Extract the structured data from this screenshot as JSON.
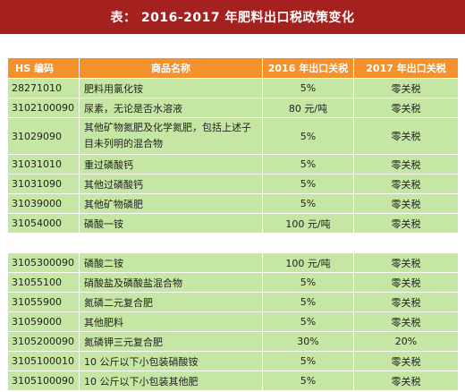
{
  "title": "表：  2016-2017 年肥料出口税政策变化",
  "headers": [
    "HS 编码",
    "商品名称",
    "2016 年出口关税",
    "2017 年出口关税"
  ],
  "table1_rows": [
    [
      "28271010",
      "肥料用氯化铵",
      "5%",
      "零关税"
    ],
    [
      "3102100090",
      "尿素，无论是否水溶液",
      "80 元/吨",
      "零关税"
    ],
    [
      "31029090",
      "其他矿物氮肥及化学氮肥，包括上述子目未列明的混合物",
      "5%",
      "零关税"
    ],
    [
      "31031010",
      "重过磷酸钙",
      "5%",
      "零关税"
    ],
    [
      "31031090",
      "其他过磷酸钙",
      "5%",
      "零关税"
    ],
    [
      "31039000",
      "其他矿物磷肥",
      "5%",
      "零关税"
    ],
    [
      "31054000",
      "磷酸一铵",
      "100 元/吨",
      "零关税"
    ]
  ],
  "table2_rows": [
    [
      "3105300090",
      "磷酸二铵",
      "100 元/吨",
      "零关税"
    ],
    [
      "31055100",
      "硝酸盐及磷酸盐混合物",
      "5%",
      "零关税"
    ],
    [
      "31055900",
      "氮磷二元复合肥",
      "5%",
      "零关税"
    ],
    [
      "31059000",
      "其他肥料",
      "5%",
      "零关税"
    ],
    [
      "3105200090",
      "氮磷钾三元复合肥",
      "30%",
      "20%"
    ],
    [
      "3105100010",
      "10 公斤以下小包装硝酸铵",
      "5%",
      "零关税"
    ],
    [
      "3105100090",
      "10 公斤以下小包装其他肥",
      "5%",
      "零关税"
    ]
  ],
  "colors": {
    "title_bg": "#a5211f",
    "header_bg": "#f5912d",
    "row_bg": "#c6e6a4"
  }
}
